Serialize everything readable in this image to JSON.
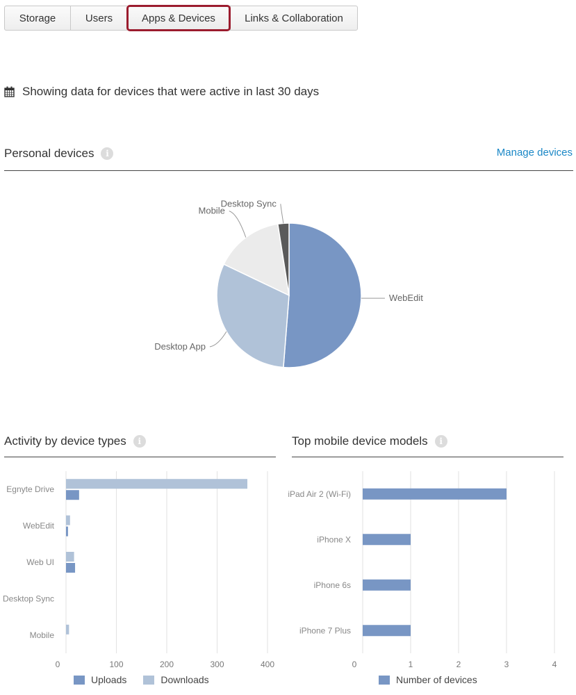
{
  "tabs": [
    {
      "label": "Storage"
    },
    {
      "label": "Users"
    },
    {
      "label": "Apps & Devices"
    },
    {
      "label": "Links & Collaboration"
    }
  ],
  "notice": {
    "icon": "calendar-icon",
    "text": "Showing data for devices that were active in last 30 days"
  },
  "personal": {
    "title": "Personal devices",
    "manage_link": "Manage devices"
  },
  "activity": {
    "title": "Activity by device types"
  },
  "mobile": {
    "title": "Top mobile device models"
  },
  "colors": {
    "uploads": "#7896c4",
    "downloads": "#b0c2d8",
    "mobile_other": "#ebebeb",
    "desktop_sync": "#5a5a5a",
    "link": "#1a87c6",
    "active_tab_border": "#9b1c2e"
  },
  "chart_data": [
    {
      "type": "pie",
      "title": "Personal devices",
      "slices": [
        {
          "label": "WebEdit",
          "value": 51.5,
          "color": "#7896c4"
        },
        {
          "label": "Desktop App",
          "value": 31,
          "color": "#b0c2d8"
        },
        {
          "label": "Mobile",
          "value": 15.5,
          "color": "#ebebeb"
        },
        {
          "label": "Desktop Sync",
          "value": 2.5,
          "color": "#5a5a5a"
        }
      ]
    },
    {
      "type": "bar",
      "orientation": "horizontal",
      "title": "Activity by device types",
      "categories": [
        "Egnyte Drive",
        "WebEdit",
        "Web UI",
        "Desktop Sync",
        "Mobile"
      ],
      "series": [
        {
          "name": "Downloads",
          "values": [
            360,
            8,
            16,
            0,
            6
          ],
          "color": "#b0c2d8"
        },
        {
          "name": "Uploads",
          "values": [
            26,
            4,
            18,
            0,
            0
          ],
          "color": "#7896c4"
        }
      ],
      "xlim": [
        0,
        400
      ],
      "xticks": [
        0,
        100,
        200,
        300,
        400
      ],
      "grid": true,
      "legend": "bottom"
    },
    {
      "type": "bar",
      "orientation": "horizontal",
      "title": "Top mobile device models",
      "categories": [
        "iPad Air 2 (Wi-Fi)",
        "iPhone X",
        "iPhone 6s",
        "iPhone 7 Plus"
      ],
      "series": [
        {
          "name": "Number of devices",
          "values": [
            3,
            1,
            1,
            1
          ],
          "color": "#7896c4"
        }
      ],
      "xlim": [
        0,
        4
      ],
      "xticks": [
        0,
        1,
        2,
        3,
        4
      ],
      "grid": true,
      "legend": "bottom"
    }
  ]
}
